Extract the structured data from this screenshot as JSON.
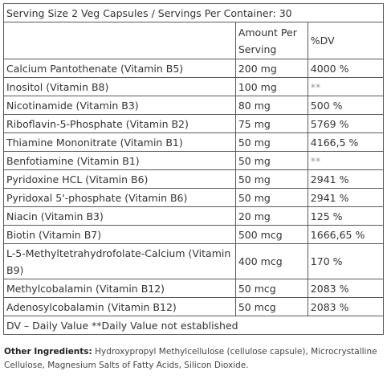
{
  "serving_line": "Serving Size 2 Veg Capsules / Servings Per Container: 30",
  "headers": {
    "amount": "Amount Per Serving",
    "dv": "%DV"
  },
  "rows": [
    {
      "name": "Calcium Pantothenate (Vitamin B5)",
      "amount": "200 mg",
      "dv": "4000 %"
    },
    {
      "name": "Inositol (Vitamin B8)",
      "amount": "100 mg",
      "dv": "**"
    },
    {
      "name": "Nicotinamide (Vitamin B3)",
      "amount": "80 mg",
      "dv": "500 %"
    },
    {
      "name": "Riboflavin-5-Phosphate (Vitamin B2)",
      "amount": "75 mg",
      "dv": "5769 %"
    },
    {
      "name": "Thiamine Mononitrate (Vitamin B1)",
      "amount": "50 mg",
      "dv": "4166,5 %"
    },
    {
      "name": "Benfotiamine (Vitamin B1)",
      "amount": "50 mg",
      "dv": "**"
    },
    {
      "name": "Pyridoxine HCL (Vitamin B6)",
      "amount": "50 mg",
      "dv": "2941 %"
    },
    {
      "name": "Pyridoxal 5'-phosphate (Vitamin B6)",
      "amount": "50 mg",
      "dv": "2941 %"
    },
    {
      "name": "Niacin (Vitamin B3)",
      "amount": "20 mg",
      "dv": "125 %"
    },
    {
      "name": "Biotin (Vitamin B7)",
      "amount": "500 mcg",
      "dv": "1666,65 %"
    },
    {
      "name": "L-5-Methyltetrahydrofolate-Calcium (Vitamin B9)",
      "amount": "400 mcg",
      "dv": "170 %"
    },
    {
      "name": "Methylcobalamin (Vitamin B12)",
      "amount": "50 mcg",
      "dv": "2083 %"
    },
    {
      "name": "Adenosylcobalamin (Vitamin B12)",
      "amount": "50 mcg",
      "dv": "2083 %"
    }
  ],
  "footnote": "DV – Daily Value **Daily Value not established",
  "other_ingredients": {
    "label": "Other Ingredients:",
    "text": " Hydroxypropyl Methylcellulose (cellulose capsule), Microcrystalline Cellulose, Magnesium Salts of Fatty Acids, Silicon Dioxide."
  }
}
